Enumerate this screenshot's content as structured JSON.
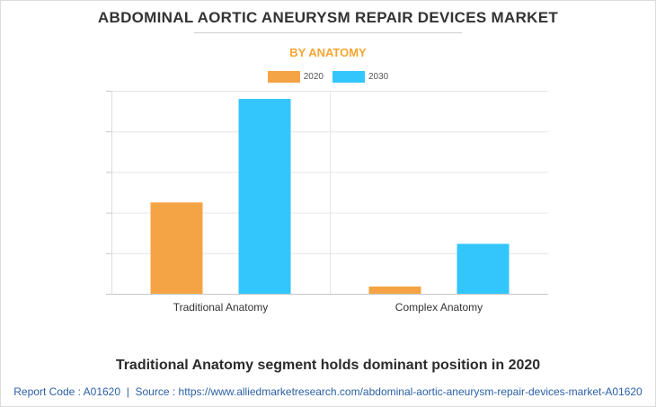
{
  "title": "ABDOMINAL AORTIC ANEURYSM REPAIR DEVICES MARKET",
  "subtitle": "BY ANATOMY",
  "caption": "Traditional Anatomy segment holds dominant position in 2020",
  "footer": {
    "report_code_label": "Report Code : A01620",
    "separator": "|",
    "source_label": "Source : https://www.alliedmarketresearch.com/abdominal-aortic-aneurysm-repair-devices-market-A01620"
  },
  "colors": {
    "2020": "#f4a444",
    "2030": "#33c6fc",
    "subtitle": "#f7a531",
    "footer": "#2a5fa6"
  },
  "chart_data": {
    "type": "bar",
    "categories": [
      "Traditional Anatomy",
      "Complex Anatomy"
    ],
    "series": [
      {
        "name": "2020",
        "values": [
          2.25,
          0.18
        ]
      },
      {
        "name": "2030",
        "values": [
          4.8,
          1.23
        ]
      }
    ],
    "ylim": [
      0,
      5
    ],
    "grid": true,
    "legend": "top-center",
    "y_tick_labels_shown": false
  }
}
